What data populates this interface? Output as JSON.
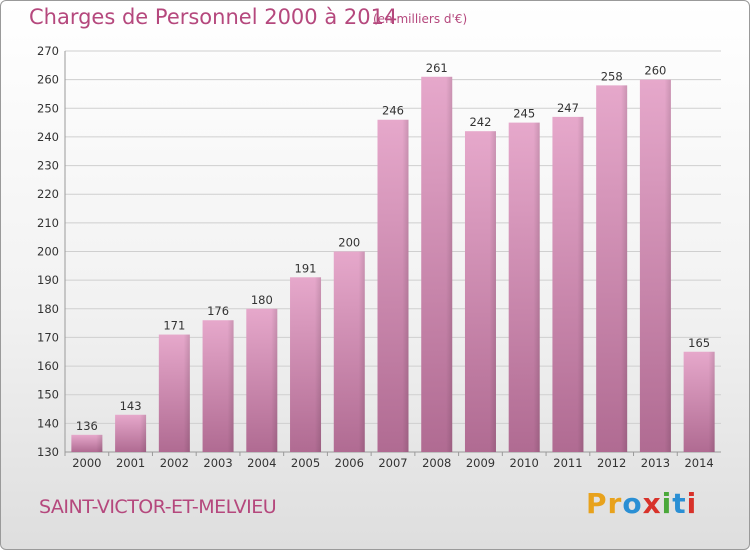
{
  "title": "Charges de Personnel 2000 à 2014",
  "subtitle": "(en milliers d'€)",
  "commune": "SAINT-VICTOR-ET-MELVIEU",
  "logo": {
    "letters": [
      "P",
      "r",
      "o",
      "x",
      "i",
      "t",
      "i"
    ],
    "colors": [
      "#e8a21c",
      "#e8a21c",
      "#2a8fd4",
      "#d8322a",
      "#4aa83a",
      "#2a8fd4",
      "#d8322a"
    ]
  },
  "colors": {
    "bar": "#d98fb8",
    "bar_dark": "#b46a92",
    "accent": "#b5487d"
  },
  "chart_data": {
    "type": "bar",
    "categories": [
      "2000",
      "2001",
      "2002",
      "2003",
      "2004",
      "2005",
      "2006",
      "2007",
      "2008",
      "2009",
      "2010",
      "2011",
      "2012",
      "2013",
      "2014"
    ],
    "values": [
      136,
      143,
      171,
      176,
      180,
      191,
      200,
      246,
      261,
      242,
      245,
      247,
      258,
      260,
      165
    ],
    "ylim": [
      130,
      270
    ],
    "yticks": [
      130,
      140,
      150,
      160,
      170,
      180,
      190,
      200,
      210,
      220,
      230,
      240,
      250,
      260,
      270
    ],
    "grid": true,
    "title": "Charges de Personnel 2000 à 2014",
    "xlabel": "",
    "ylabel": ""
  }
}
